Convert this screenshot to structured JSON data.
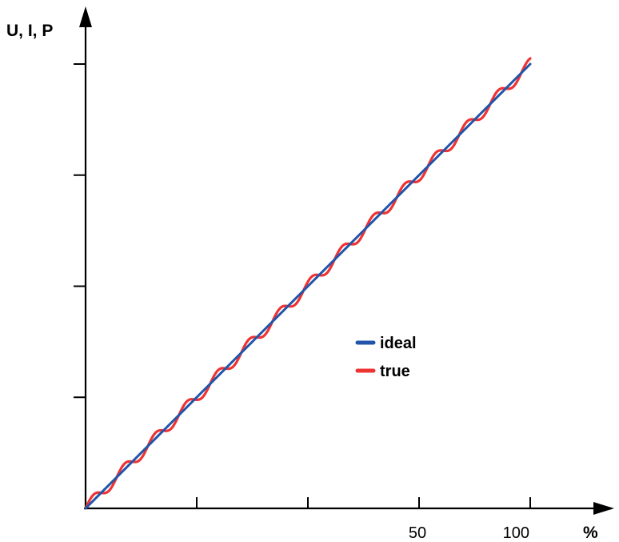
{
  "chart_data": {
    "type": "line",
    "xlabel": "%",
    "ylabel": "U, I, P",
    "xlim": [
      0,
      100
    ],
    "ylim": [
      0,
      100
    ],
    "x_ticks": [
      25,
      50,
      75,
      100
    ],
    "x_tick_labels": [
      "",
      "50",
      "",
      "100"
    ],
    "y_ticks": [
      25,
      50,
      75,
      100
    ],
    "legend": {
      "position": "center-right",
      "entries": [
        "ideal",
        "true"
      ]
    },
    "grid": false,
    "series": [
      {
        "name": "ideal",
        "color": "#2255aa",
        "x": [
          0,
          100
        ],
        "y": [
          0,
          100
        ]
      },
      {
        "name": "true",
        "color": "#ee3333",
        "x": [
          0,
          7,
          14,
          21,
          28,
          35,
          42,
          49,
          56,
          63,
          70,
          77,
          84,
          91,
          100
        ],
        "y": [
          0,
          7,
          14,
          21,
          28,
          35,
          42,
          49,
          56,
          63,
          70,
          77,
          84,
          91,
          100
        ],
        "ripple_amplitude": 1.3,
        "ripple_period": 7
      }
    ]
  }
}
